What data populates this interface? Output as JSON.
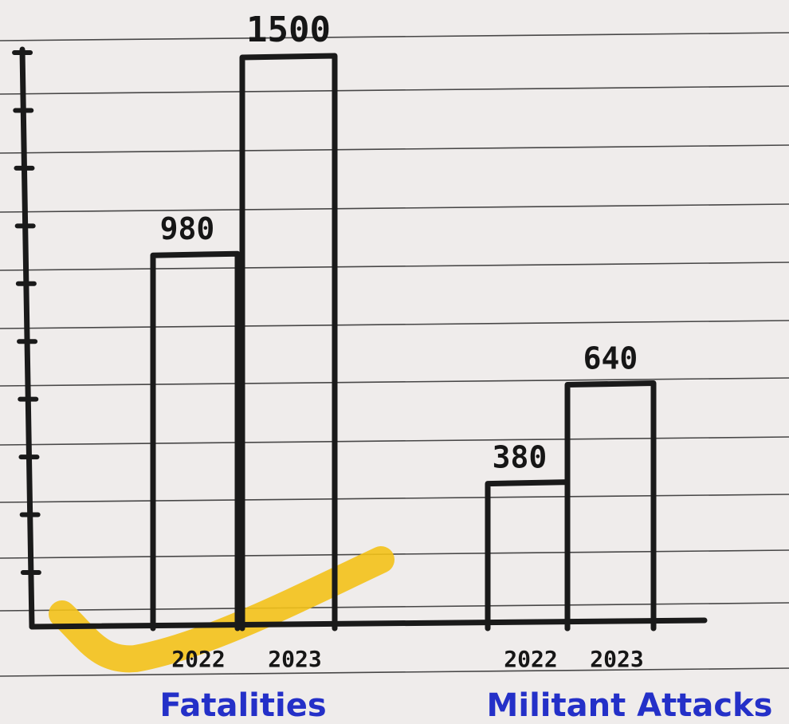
{
  "chart_data": {
    "type": "bar",
    "groups": [
      {
        "label": "Fatalities",
        "categories": [
          "2022",
          "2023"
        ],
        "values": [
          980,
          1500
        ],
        "value_labels": [
          "980",
          "1500"
        ],
        "category_labels": [
          "2022",
          "2023"
        ]
      },
      {
        "label": "Militant Attacks",
        "categories": [
          "2022",
          "2023"
        ],
        "values": [
          380,
          640
        ],
        "value_labels": [
          "380",
          "640"
        ],
        "category_labels": [
          "2022",
          "2023"
        ]
      }
    ],
    "grid": true,
    "y_ticks": 10,
    "annotations": [
      "yellow highlighter check mark"
    ],
    "colors": {
      "paper": "#efeceb",
      "ink": "#1a1a1a",
      "rule": "#2b2b2b",
      "blue_label": "#2430c8",
      "highlighter": "#f3c21a"
    }
  }
}
